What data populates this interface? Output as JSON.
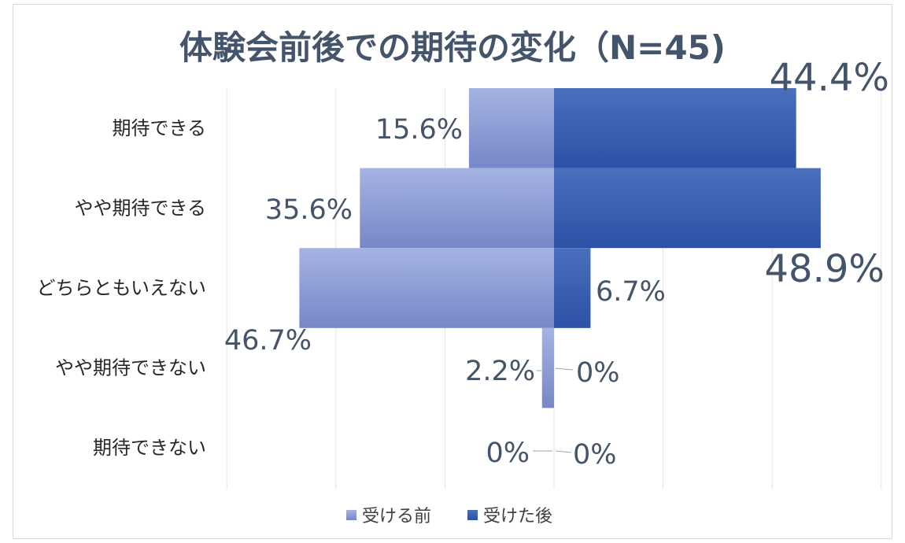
{
  "chart_data": {
    "type": "bar",
    "orientation": "horizontal-diverging",
    "title": "体験会前後での期待の変化（N=45)",
    "categories": [
      "期待できる",
      "やや期待できる",
      "どちらともいえない",
      "やや期待できない",
      "期待できない"
    ],
    "series": [
      {
        "name": "受ける前",
        "values": [
          15.6,
          35.6,
          46.7,
          2.2,
          0
        ],
        "labels": [
          "15.6%",
          "35.6%",
          "46.7%",
          "2.2%",
          "0%"
        ],
        "color": "#8e9fd6",
        "direction": "left"
      },
      {
        "name": "受けた後",
        "values": [
          44.4,
          48.9,
          6.7,
          0,
          0
        ],
        "labels": [
          "44.4%",
          "48.9%",
          "6.7%",
          "0%",
          "0%"
        ],
        "color": "#3a5fb0",
        "direction": "right"
      }
    ],
    "xlim": [
      -60,
      60
    ],
    "grid": true,
    "legend": "bottom"
  }
}
